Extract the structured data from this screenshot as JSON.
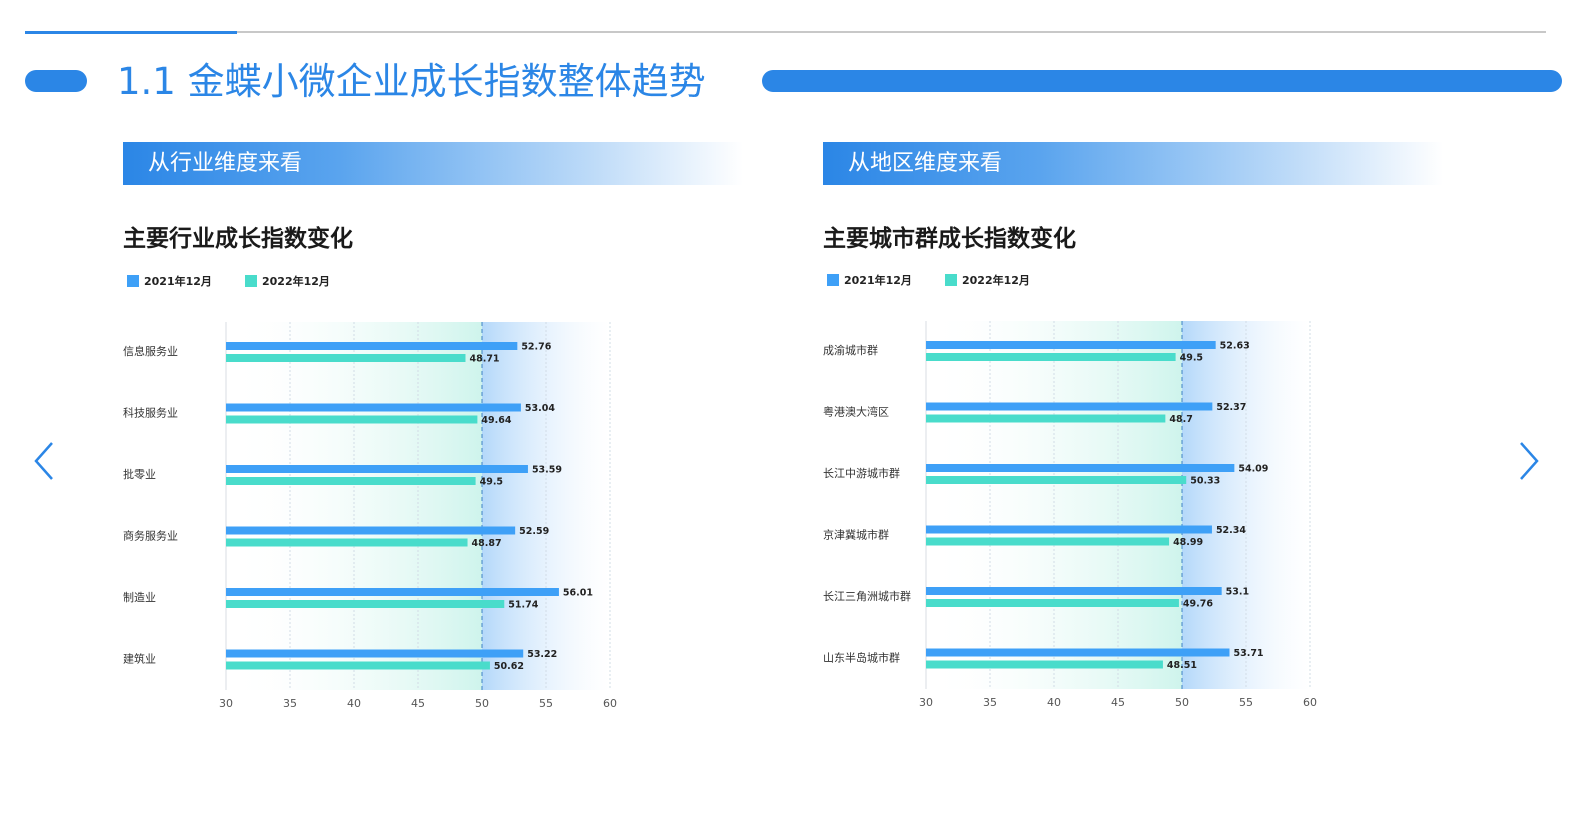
{
  "page": {
    "title": "1.1 金蝶小微企业成长指数整体趋势"
  },
  "sections": [
    {
      "banner": "从行业维度来看"
    },
    {
      "banner": "从地区维度来看"
    }
  ],
  "nav": {
    "prev_icon": "chevron-left-icon",
    "next_icon": "chevron-right-icon"
  },
  "colors": {
    "accent": "#2b86e6",
    "series_2021": "#3ea0f7",
    "series_2022": "#49dccb"
  },
  "chart_data": [
    {
      "type": "bar",
      "orientation": "horizontal",
      "title": "主要行业成长指数变化",
      "categories": [
        "信息服务业",
        "科技服务业",
        "批零业",
        "商务服务业",
        "制造业",
        "建筑业"
      ],
      "series": [
        {
          "name": "2021年12月",
          "color": "#3ea0f7",
          "values": [
            52.76,
            53.04,
            53.59,
            52.59,
            56.01,
            53.22
          ]
        },
        {
          "name": "2022年12月",
          "color": "#49dccb",
          "values": [
            48.71,
            49.64,
            49.5,
            48.87,
            51.74,
            50.62
          ]
        }
      ],
      "xlim": [
        30,
        60
      ],
      "xticks": [
        "30",
        "35",
        "40",
        "45",
        "50",
        "55",
        "60"
      ],
      "reference_line": 50,
      "legend_position": "top-left",
      "grid": true
    },
    {
      "type": "bar",
      "orientation": "horizontal",
      "title": "主要城市群成长指数变化",
      "categories": [
        "成渝城市群",
        "粤港澳大湾区",
        "长江中游城市群",
        "京津冀城市群",
        "长江三角洲城市群",
        "山东半岛城市群"
      ],
      "series": [
        {
          "name": "2021年12月",
          "color": "#3ea0f7",
          "values": [
            52.63,
            52.37,
            54.09,
            52.34,
            53.1,
            53.71
          ]
        },
        {
          "name": "2022年12月",
          "color": "#49dccb",
          "values": [
            49.5,
            48.7,
            50.33,
            48.99,
            49.76,
            48.51
          ]
        }
      ],
      "xlim": [
        30,
        60
      ],
      "xticks": [
        "30",
        "35",
        "40",
        "45",
        "50",
        "55",
        "60"
      ],
      "reference_line": 50,
      "legend_position": "top-left",
      "grid": true
    }
  ]
}
